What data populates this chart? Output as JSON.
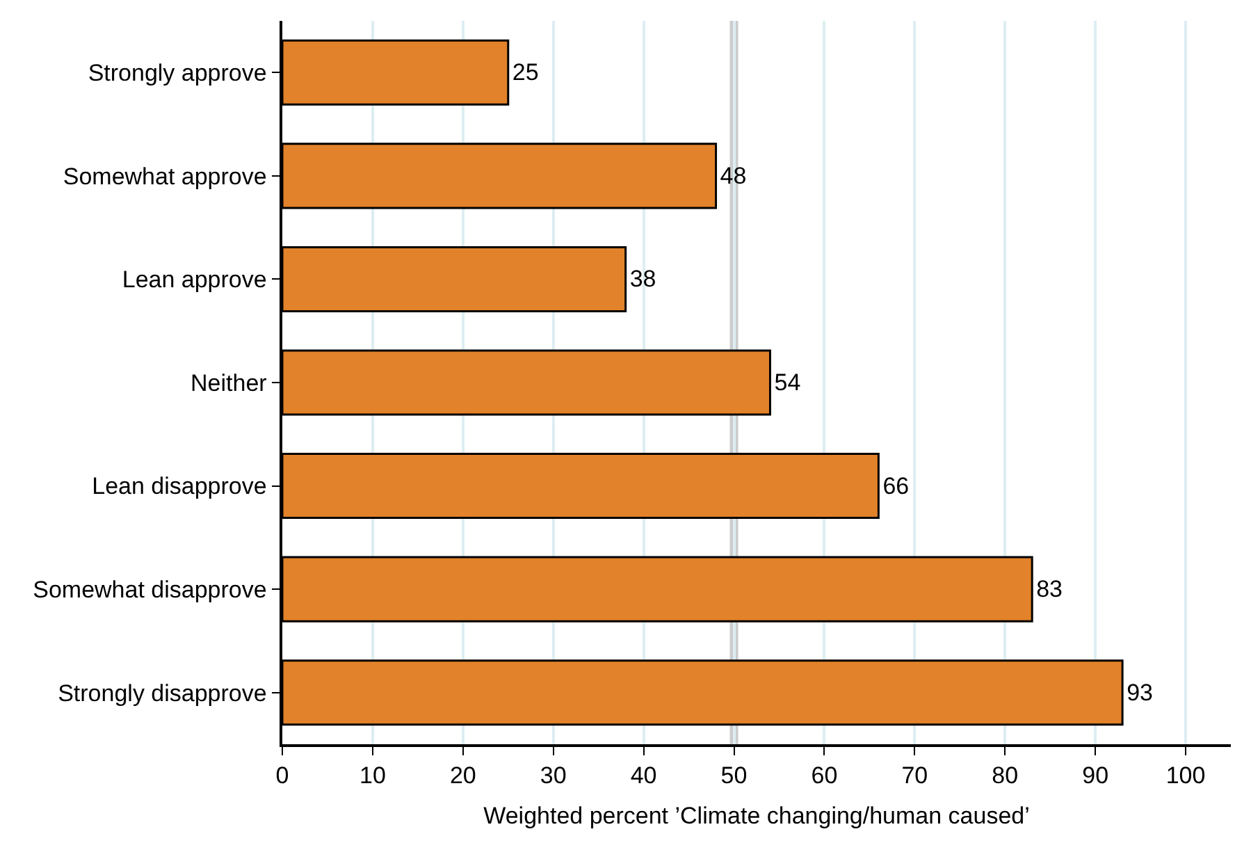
{
  "chart_data": {
    "type": "bar",
    "orientation": "horizontal",
    "categories": [
      "Strongly approve",
      "Somewhat approve",
      "Lean approve",
      "Neither",
      "Lean disapprove",
      "Somewhat disapprove",
      "Strongly disapprove"
    ],
    "values": [
      25,
      48,
      38,
      54,
      66,
      83,
      93
    ],
    "color": "#e2822a",
    "xlabel": "Weighted percent ’Climate changing/human caused’",
    "xlim": [
      0,
      105
    ],
    "xticks": [
      0,
      10,
      20,
      30,
      40,
      50,
      60,
      70,
      80,
      90,
      100
    ],
    "grid": "x",
    "data_labels": true,
    "ref_lines": [
      {
        "axis": "x",
        "value": 50,
        "color": "#cccccc"
      }
    ]
  }
}
